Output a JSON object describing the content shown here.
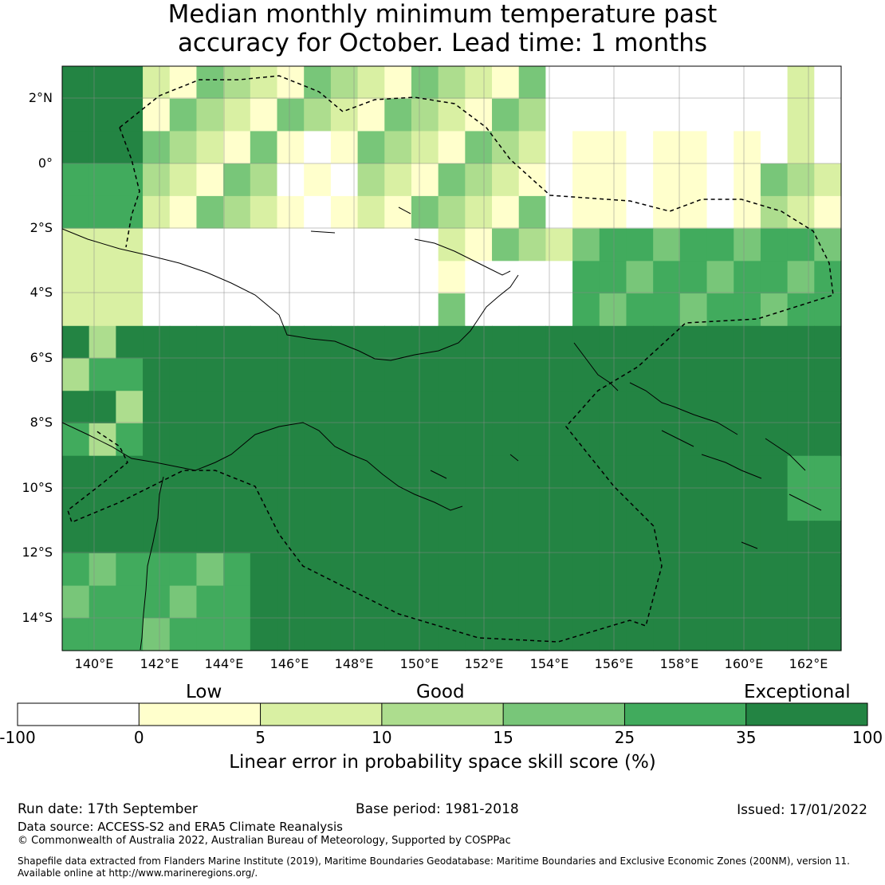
{
  "title_line1": "Median monthly minimum temperature past",
  "title_line2": "accuracy for October. Lead time: 1 months",
  "lat_labels": [
    "2°N",
    "0°",
    "2°S",
    "4°S",
    "6°S",
    "8°S",
    "10°S",
    "12°S",
    "14°S"
  ],
  "lon_labels": [
    "140°E",
    "142°E",
    "144°E",
    "146°E",
    "148°E",
    "150°E",
    "152°E",
    "154°E",
    "156°E",
    "158°E",
    "160°E",
    "162°E"
  ],
  "colorbar": {
    "category_labels": [
      "Low",
      "Good",
      "Exceptional"
    ],
    "tick_labels": [
      "-100",
      "0",
      "5",
      "10",
      "15",
      "25",
      "35",
      "100"
    ],
    "colors": [
      "#ffffff",
      "#ffffcc",
      "#d9f0a3",
      "#addd8e",
      "#78c679",
      "#41ab5d",
      "#238443"
    ],
    "title": "Linear error in probability space skill score (%)"
  },
  "footer": {
    "run_date": "Run date: 17th September",
    "base_period": "Base period: 1981-2018",
    "issued": "Issued: 17/01/2022",
    "data_source": "Data source: ACCESS-S2 and ERA5 Climate Reanalysis",
    "copyright": "© Commonwealth of Australia 2022, Australian Bureau of Meteorology, Supported by COSPPac",
    "shapefile_line1": "Shapefile data extracted from Flanders Marine Institute (2019), Maritime Boundaries Geodatabase: Maritime Boundaries and Exclusive Economic Zones (200NM), version 11.",
    "shapefile_line2": "Available online at http://www.marineregions.org/."
  }
}
